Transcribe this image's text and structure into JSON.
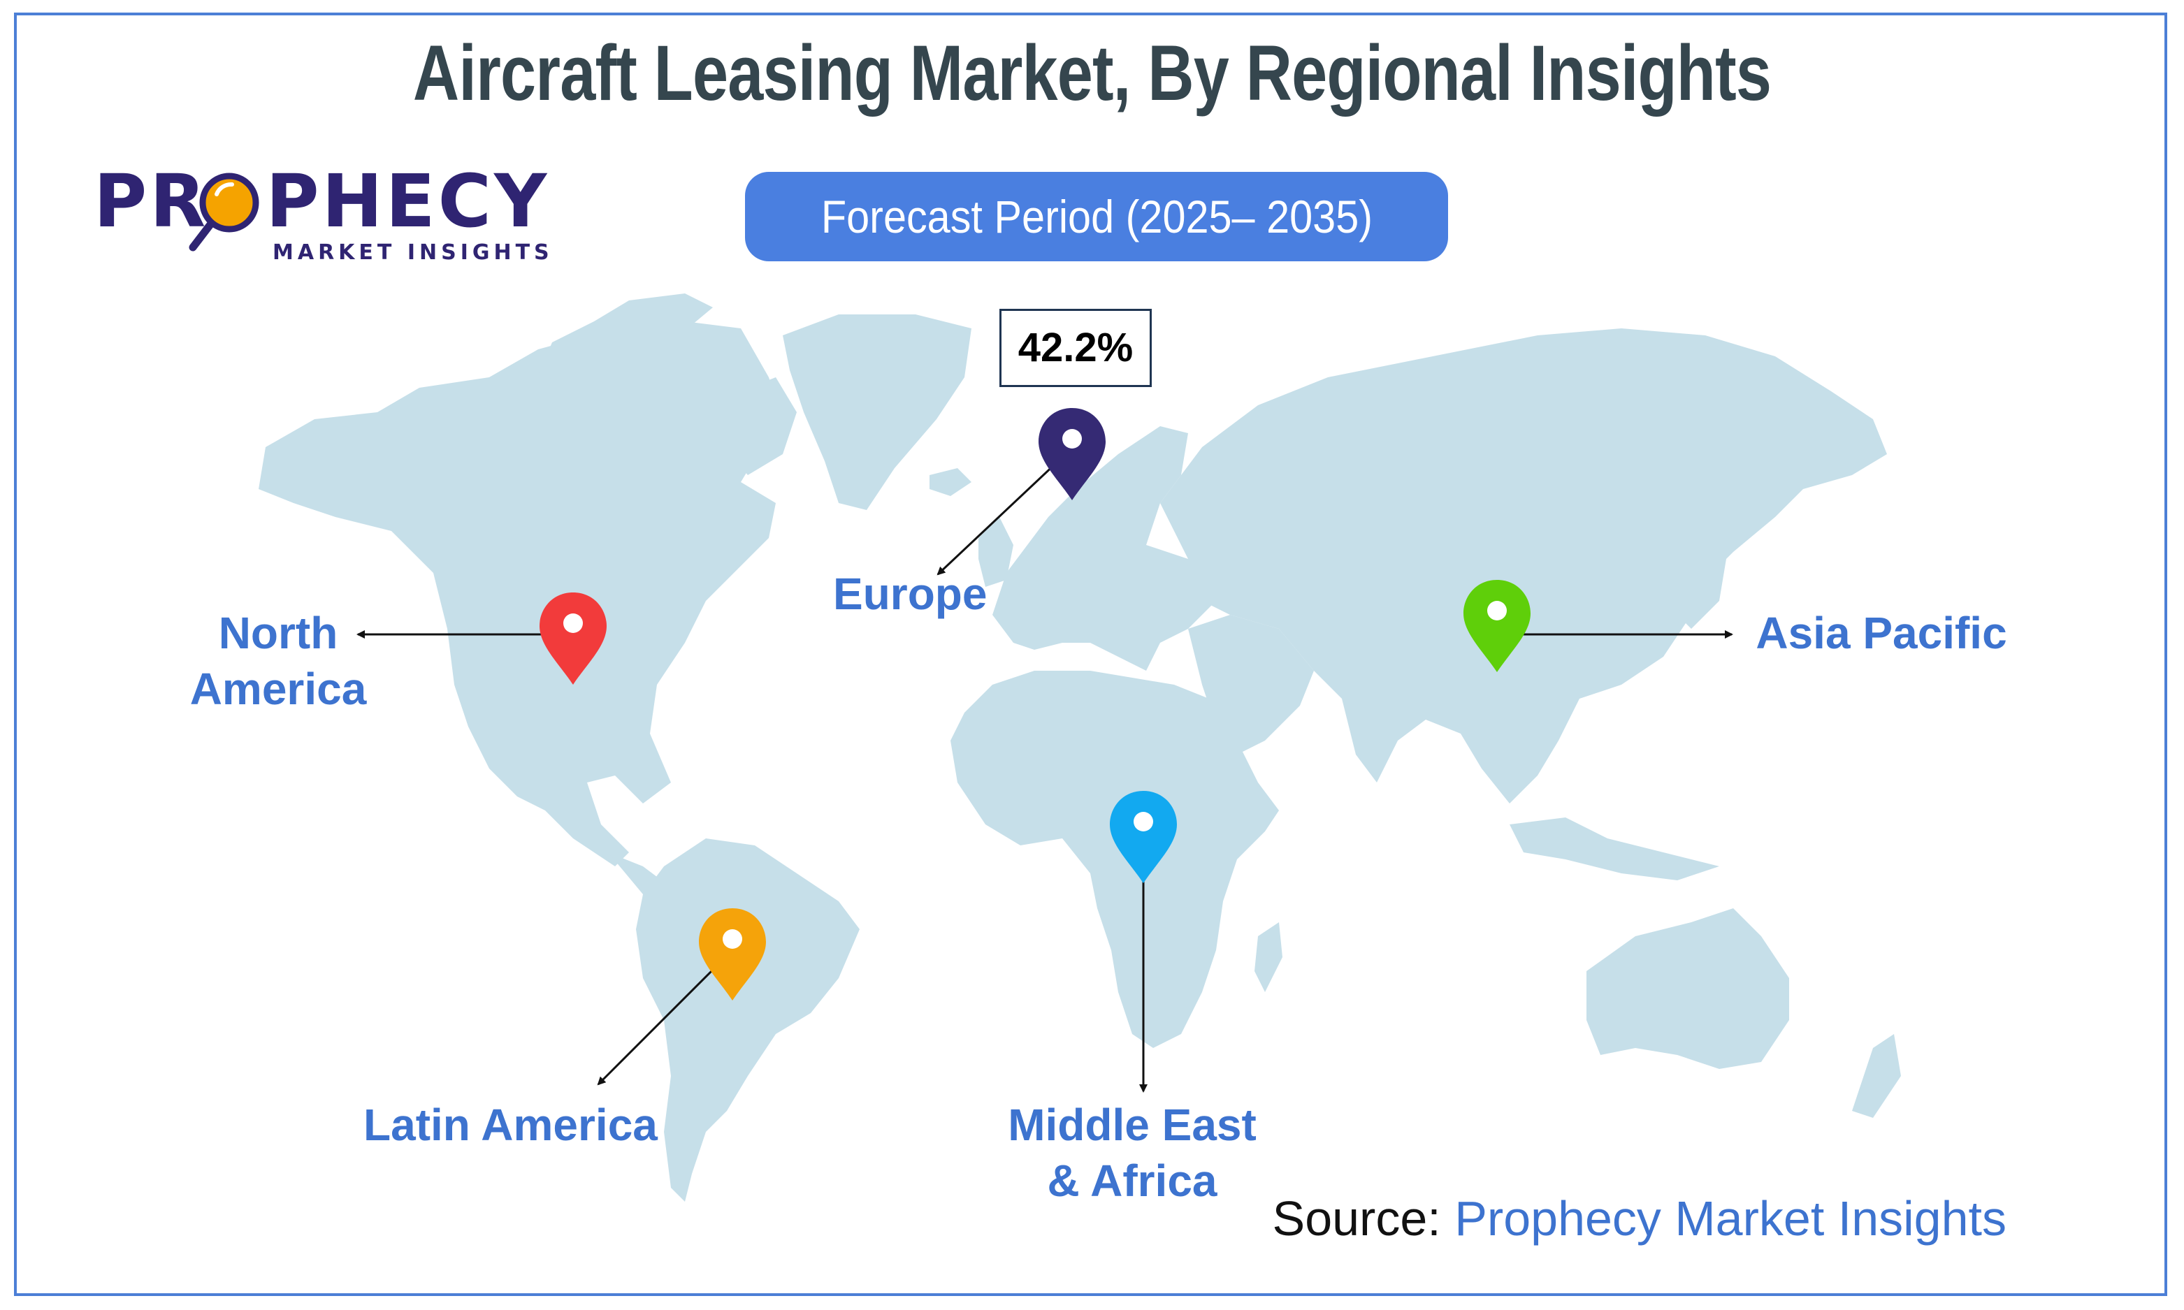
{
  "title": "Aircraft Leasing Market, By Regional Insights",
  "logo": {
    "word_left": "PR",
    "word_right": "PHECY",
    "subtitle": "MARKET INSIGHTS",
    "brand_color": "#2f2472",
    "lens_color": "#f5a300"
  },
  "forecast_label": "Forecast Period (2025– 2035)",
  "regions": [
    {
      "id": "north-america",
      "label_line1": "North",
      "label_line2": "America",
      "pin_color": "#f23b3b"
    },
    {
      "id": "europe",
      "label_line1": "Europe",
      "label_line2": "",
      "pin_color": "#352a74",
      "value": "42.2%"
    },
    {
      "id": "asia-pacific",
      "label_line1": "Asia Pacific",
      "label_line2": "",
      "pin_color": "#5fcf0a"
    },
    {
      "id": "latin-america",
      "label_line1": "Latin America",
      "label_line2": "",
      "pin_color": "#f5a30a"
    },
    {
      "id": "middle-east-africa",
      "label_line1": "Middle East",
      "label_line2": "& Africa",
      "pin_color": "#12a9f0"
    }
  ],
  "source": {
    "prefix": "Source: ",
    "name": "Prophecy Market Insights"
  },
  "colors": {
    "land": "#c6dfe9",
    "frame": "#4c7fd6",
    "label": "#3d73cf",
    "title": "#35464e",
    "pill": "#4a7fe0"
  }
}
